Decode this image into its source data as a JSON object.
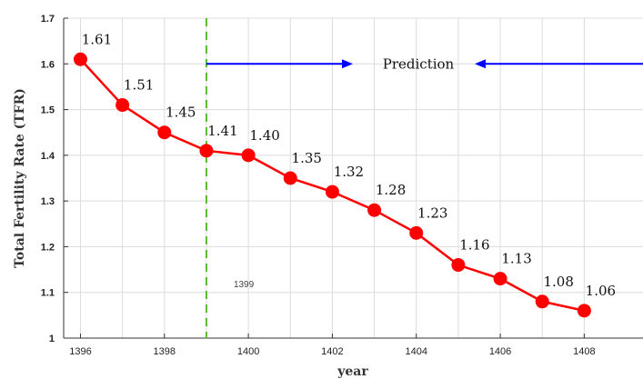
{
  "chart_data": {
    "type": "line",
    "title": "",
    "xlabel": "year",
    "ylabel": "Total Fertility Rate (TFR)",
    "x": [
      1396,
      1397,
      1398,
      1399,
      1400,
      1401,
      1402,
      1403,
      1404,
      1405,
      1406,
      1407,
      1408
    ],
    "series": [
      {
        "values": [
          1.61,
          1.51,
          1.45,
          1.41,
          1.4,
          1.35,
          1.32,
          1.28,
          1.23,
          1.16,
          1.13,
          1.08,
          1.06
        ],
        "labels": [
          "1.61",
          "1.51",
          "1.45",
          "1.41",
          "1.40",
          "1.35",
          "1.32",
          "1.28",
          "1.23",
          "1.16",
          "1.13",
          "1.08",
          "1.06"
        ],
        "color": "#ff0000"
      }
    ],
    "xlim": [
      1395.6,
      1409.4
    ],
    "ylim": [
      1,
      1.7
    ],
    "xticks": [
      "1396",
      "1398",
      "1400",
      "1402",
      "1404",
      "1406",
      "1408"
    ],
    "yticks": [
      "1",
      "1.1",
      "1.2",
      "1.3",
      "1.4",
      "1.5",
      "1.6",
      "1.7"
    ],
    "grid": true,
    "vline": {
      "x": 1399,
      "label": "1399",
      "color": "#5cb82e"
    },
    "annotation": {
      "text": "Prediction",
      "color": "#0000ff"
    }
  }
}
